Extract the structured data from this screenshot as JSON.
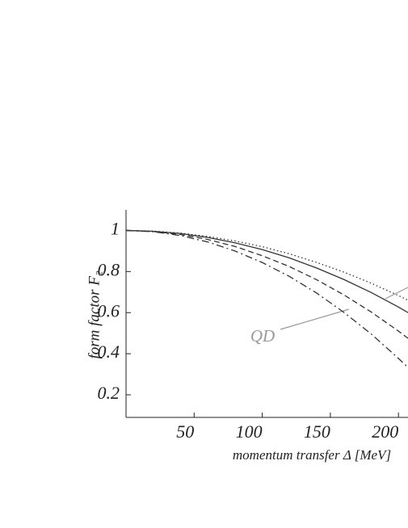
{
  "chart_data": {
    "type": "line",
    "y_label": "form factor F₂",
    "x_label": "momentum transfer Δ [MeV]",
    "annotation": "QD",
    "x": [
      0,
      20,
      40,
      60,
      80,
      100,
      120,
      140,
      160,
      180,
      200,
      207
    ],
    "series": [
      {
        "color": "#333333",
        "dash": "dotted",
        "values": [
          1,
          0.997,
          0.987,
          0.971,
          0.949,
          0.921,
          0.886,
          0.844,
          0.797,
          0.743,
          0.683,
          0.66
        ]
      },
      {
        "color": "#333333",
        "dash": "solid",
        "values": [
          1,
          0.996,
          0.985,
          0.966,
          0.94,
          0.907,
          0.866,
          0.817,
          0.761,
          0.698,
          0.627,
          0.6
        ]
      },
      {
        "color": "#333333",
        "dash": "dashed",
        "values": [
          1,
          0.995,
          0.98,
          0.956,
          0.922,
          0.877,
          0.824,
          0.76,
          0.686,
          0.603,
          0.51,
          0.475
        ]
      },
      {
        "color": "#333333",
        "dash": "dashdot",
        "values": [
          1,
          0.994,
          0.975,
          0.944,
          0.9,
          0.844,
          0.776,
          0.695,
          0.601,
          0.496,
          0.377,
          0.333
        ]
      }
    ],
    "xlim": [
      0,
      207
    ],
    "ylim": [
      0.09,
      1.1
    ],
    "xticks": [
      50,
      100,
      150,
      200
    ],
    "yticks": [
      0.2,
      0.4,
      0.6,
      0.8,
      1
    ]
  }
}
